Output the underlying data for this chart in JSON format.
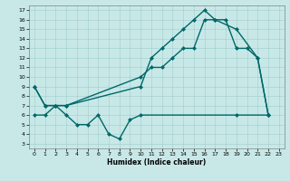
{
  "xlabel": "Humidex (Indice chaleur)",
  "bg_color": "#c8e8e8",
  "line_color": "#006868",
  "xlim": [
    -0.5,
    23.5
  ],
  "ylim": [
    2.5,
    17.5
  ],
  "xticks": [
    0,
    1,
    2,
    3,
    4,
    5,
    6,
    7,
    8,
    9,
    10,
    11,
    12,
    13,
    14,
    15,
    16,
    17,
    18,
    19,
    20,
    21,
    22,
    23
  ],
  "yticks": [
    3,
    4,
    5,
    6,
    7,
    8,
    9,
    10,
    11,
    12,
    13,
    14,
    15,
    16,
    17
  ],
  "line1_x": [
    0,
    1,
    2,
    3,
    10,
    11,
    12,
    13,
    14,
    15,
    16,
    17,
    19,
    21,
    22
  ],
  "line1_y": [
    9,
    7,
    7,
    7,
    9,
    12,
    13,
    14,
    15,
    16,
    17,
    16,
    15,
    12,
    6
  ],
  "line2_x": [
    0,
    1,
    2,
    3,
    10,
    11,
    12,
    13,
    14,
    15,
    16,
    17,
    18,
    19,
    20,
    21,
    22
  ],
  "line2_y": [
    9,
    7,
    7,
    7,
    10,
    11,
    11,
    12,
    13,
    13,
    16,
    16,
    16,
    13,
    13,
    12,
    6
  ],
  "line3_x": [
    0,
    1,
    2,
    3,
    4,
    5,
    6,
    7,
    8,
    9,
    10,
    19,
    22
  ],
  "line3_y": [
    6,
    6,
    7,
    6,
    5,
    5,
    6,
    4,
    3.5,
    5.5,
    6,
    6,
    6
  ]
}
